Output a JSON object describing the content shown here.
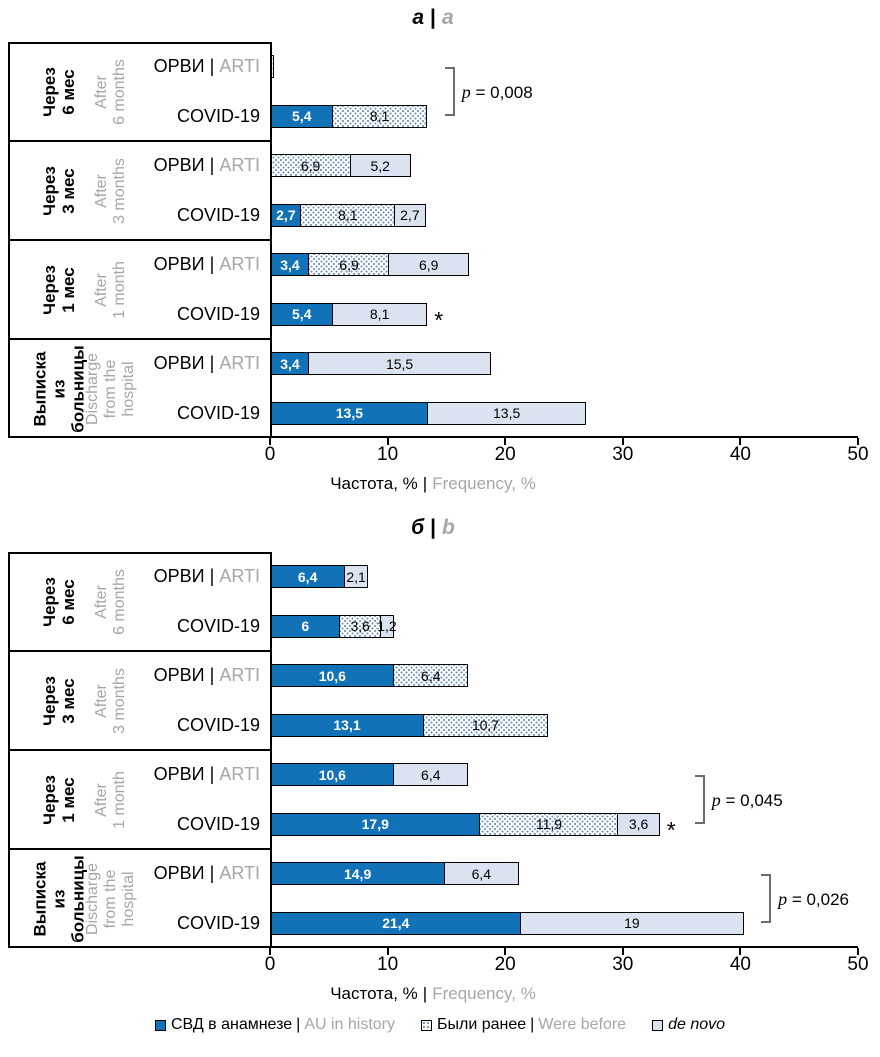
{
  "pipe": "|",
  "colors": {
    "history": "#1272b8",
    "de_novo": "#dce3f0",
    "dot_pattern": "#7296be",
    "gray_text": "#a6a6a6",
    "bracket": "#6d6d6d"
  },
  "legend": {
    "items": [
      {
        "series": "history",
        "ru": "СВД в анамнезе",
        "sep": "|",
        "en": "AU in history",
        "italic": false
      },
      {
        "series": "were_before",
        "ru": "Были ранее",
        "sep": "|",
        "en": "Were before",
        "italic": false
      },
      {
        "series": "de_novo",
        "ru": "de novo",
        "sep": "",
        "en": "",
        "italic": true
      }
    ]
  },
  "chart_data": [
    {
      "id": "a",
      "type": "bar",
      "orientation": "horizontal-stacked",
      "title_ru": "а",
      "title_en": "a",
      "xlabel_ru": "Частота, %",
      "xlabel_en": "Frequency, %",
      "xlim": [
        0,
        50
      ],
      "xticks": [
        0,
        10,
        20,
        30,
        40,
        50
      ],
      "series_legend": [
        "СВД в анамнезе | AU in history",
        "Были ранее | Were before",
        "de novo"
      ],
      "groups": [
        {
          "label_ru_lines": [
            "Через",
            "6 мес"
          ],
          "label_en_lines": [
            "After",
            "6 months"
          ],
          "rows": [
            {
              "label_ru": "ОРВИ",
              "label_en": "ARTI",
              "star": false,
              "segments": [
                {
                  "series": "were_before",
                  "value": 0.3,
                  "label": ""
                }
              ]
            },
            {
              "label_ru": "COVID-19",
              "label_en": "",
              "star": false,
              "segments": [
                {
                  "series": "history",
                  "value": 5.4,
                  "label": "5,4"
                },
                {
                  "series": "were_before",
                  "value": 8.1,
                  "label": "8,1"
                }
              ]
            }
          ],
          "bracket": {
            "label": "p = 0,008"
          }
        },
        {
          "label_ru_lines": [
            "Через",
            "3 мес"
          ],
          "label_en_lines": [
            "After",
            "3 months"
          ],
          "rows": [
            {
              "label_ru": "ОРВИ",
              "label_en": "ARTI",
              "star": false,
              "segments": [
                {
                  "series": "were_before",
                  "value": 6.9,
                  "label": "6,9"
                },
                {
                  "series": "de_novo",
                  "value": 5.2,
                  "label": "5,2"
                }
              ]
            },
            {
              "label_ru": "COVID-19",
              "label_en": "",
              "star": false,
              "segments": [
                {
                  "series": "history",
                  "value": 2.7,
                  "label": "2,7"
                },
                {
                  "series": "were_before",
                  "value": 8.1,
                  "label": "8,1"
                },
                {
                  "series": "de_novo",
                  "value": 2.7,
                  "label": "2,7"
                }
              ]
            }
          ],
          "bracket": null
        },
        {
          "label_ru_lines": [
            "Через",
            "1 мес"
          ],
          "label_en_lines": [
            "After",
            "1 month"
          ],
          "rows": [
            {
              "label_ru": "ОРВИ",
              "label_en": "ARTI",
              "star": false,
              "segments": [
                {
                  "series": "history",
                  "value": 3.4,
                  "label": "3,4"
                },
                {
                  "series": "were_before",
                  "value": 6.9,
                  "label": "6,9"
                },
                {
                  "series": "de_novo",
                  "value": 6.9,
                  "label": "6,9"
                }
              ]
            },
            {
              "label_ru": "COVID-19",
              "label_en": "",
              "star": true,
              "segments": [
                {
                  "series": "history",
                  "value": 5.4,
                  "label": "5,4"
                },
                {
                  "series": "de_novo",
                  "value": 8.1,
                  "label": "8,1"
                }
              ]
            }
          ],
          "bracket": null
        },
        {
          "label_ru_lines": [
            "Выписка",
            "из",
            "больницы"
          ],
          "label_en_lines": [
            "Discharge",
            "from the",
            "hospital"
          ],
          "rows": [
            {
              "label_ru": "ОРВИ",
              "label_en": "ARTI",
              "star": false,
              "segments": [
                {
                  "series": "history",
                  "value": 3.4,
                  "label": "3,4"
                },
                {
                  "series": "de_novo",
                  "value": 15.5,
                  "label": "15,5"
                }
              ]
            },
            {
              "label_ru": "COVID-19",
              "label_en": "",
              "star": false,
              "segments": [
                {
                  "series": "history",
                  "value": 13.5,
                  "label": "13,5"
                },
                {
                  "series": "de_novo",
                  "value": 13.5,
                  "label": "13,5"
                }
              ]
            }
          ],
          "bracket": null
        }
      ]
    },
    {
      "id": "b",
      "type": "bar",
      "orientation": "horizontal-stacked",
      "title_ru": "б",
      "title_en": "b",
      "xlabel_ru": "Частота, %",
      "xlabel_en": "Frequency, %",
      "xlim": [
        0,
        50
      ],
      "xticks": [
        0,
        10,
        20,
        30,
        40,
        50
      ],
      "series_legend": [
        "СВД в анамнезе | AU in history",
        "Были ранее | Were before",
        "de novo"
      ],
      "groups": [
        {
          "label_ru_lines": [
            "Через",
            "6 мес"
          ],
          "label_en_lines": [
            "After",
            "6 months"
          ],
          "rows": [
            {
              "label_ru": "ОРВИ",
              "label_en": "ARTI",
              "star": false,
              "segments": [
                {
                  "series": "history",
                  "value": 6.4,
                  "label": "6,4"
                },
                {
                  "series": "de_novo",
                  "value": 2.1,
                  "label": "2,1"
                }
              ]
            },
            {
              "label_ru": "COVID-19",
              "label_en": "",
              "star": false,
              "segments": [
                {
                  "series": "history",
                  "value": 6,
                  "label": "6"
                },
                {
                  "series": "were_before",
                  "value": 3.6,
                  "label": "3,6"
                },
                {
                  "series": "de_novo",
                  "value": 1.2,
                  "label": "1,2"
                }
              ]
            }
          ],
          "bracket": null
        },
        {
          "label_ru_lines": [
            "Через",
            "3 мес"
          ],
          "label_en_lines": [
            "After",
            "3 months"
          ],
          "rows": [
            {
              "label_ru": "ОРВИ",
              "label_en": "ARTI",
              "star": false,
              "segments": [
                {
                  "series": "history",
                  "value": 10.6,
                  "label": "10,6"
                },
                {
                  "series": "were_before",
                  "value": 6.4,
                  "label": "6,4"
                }
              ]
            },
            {
              "label_ru": "COVID-19",
              "label_en": "",
              "star": false,
              "segments": [
                {
                  "series": "history",
                  "value": 13.1,
                  "label": "13,1"
                },
                {
                  "series": "were_before",
                  "value": 10.7,
                  "label": "10,7"
                }
              ]
            }
          ],
          "bracket": null
        },
        {
          "label_ru_lines": [
            "Через",
            "1 мес"
          ],
          "label_en_lines": [
            "After",
            "1 month"
          ],
          "rows": [
            {
              "label_ru": "ОРВИ",
              "label_en": "ARTI",
              "star": false,
              "segments": [
                {
                  "series": "history",
                  "value": 10.6,
                  "label": "10,6"
                },
                {
                  "series": "de_novo",
                  "value": 6.4,
                  "label": "6,4"
                }
              ]
            },
            {
              "label_ru": "COVID-19",
              "label_en": "",
              "star": true,
              "segments": [
                {
                  "series": "history",
                  "value": 17.9,
                  "label": "17,9"
                },
                {
                  "series": "were_before",
                  "value": 11.9,
                  "label": "11,9"
                },
                {
                  "series": "de_novo",
                  "value": 3.6,
                  "label": "3,6"
                }
              ]
            }
          ],
          "bracket": {
            "label": "p = 0,045"
          }
        },
        {
          "label_ru_lines": [
            "Выписка",
            "из",
            "больницы"
          ],
          "label_en_lines": [
            "Discharge",
            "from the",
            "hospital"
          ],
          "rows": [
            {
              "label_ru": "ОРВИ",
              "label_en": "ARTI",
              "star": false,
              "segments": [
                {
                  "series": "history",
                  "value": 14.9,
                  "label": "14,9"
                },
                {
                  "series": "de_novo",
                  "value": 6.4,
                  "label": "6,4"
                }
              ]
            },
            {
              "label_ru": "COVID-19",
              "label_en": "",
              "star": false,
              "segments": [
                {
                  "series": "history",
                  "value": 21.4,
                  "label": "21,4"
                },
                {
                  "series": "de_novo",
                  "value": 19,
                  "label": "19"
                }
              ]
            }
          ],
          "bracket": {
            "label": "p = 0,026"
          }
        }
      ]
    }
  ]
}
